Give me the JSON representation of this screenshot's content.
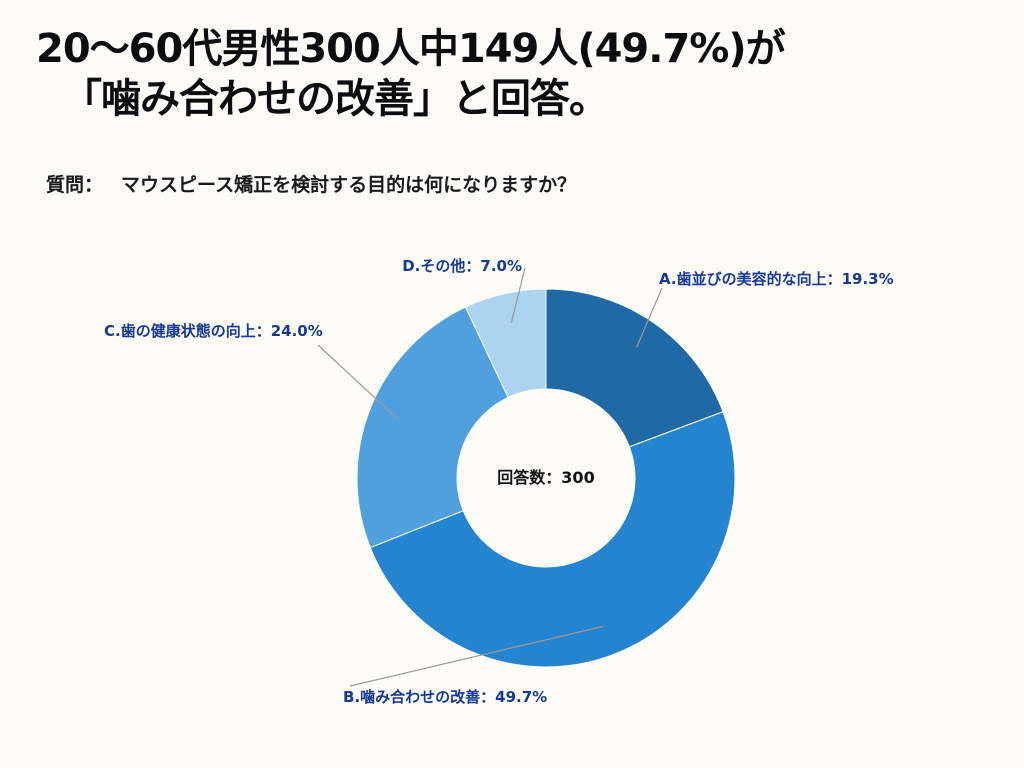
{
  "headline": {
    "line1": "20〜60代男性300人中149人(49.7%)が",
    "line2": "「噛み合わせの改善」と回答。"
  },
  "question": {
    "prefix": "質問：",
    "text": "マウスピース矯正を検討する目的は何になりますか？"
  },
  "chart_data": {
    "type": "pie",
    "donut": true,
    "center_label": "回答数：300",
    "categories": [
      "A.歯並びの美容的な向上",
      "B.噛み合わせの改善",
      "C.歯の健康状態の向上",
      "D.その他"
    ],
    "values": [
      19.3,
      49.7,
      24.0,
      7.0
    ],
    "labels": [
      "A.歯並びの美容的な向上：19.3%",
      "B.噛み合わせの改善：49.7%",
      "C.歯の健康状態の向上：24.0%",
      "D.その他：7.0%"
    ],
    "colors": [
      "#1f6aa5",
      "#2584cf",
      "#4ea1dd",
      "#acd3f0"
    ]
  }
}
